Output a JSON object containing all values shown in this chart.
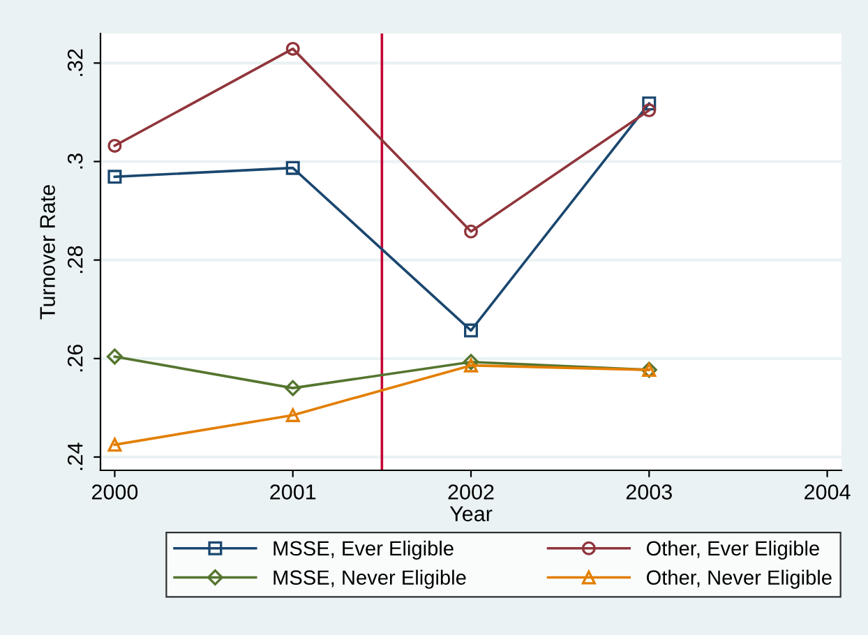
{
  "chart_data": {
    "type": "line",
    "xlabel": "Year",
    "ylabel": "Turnover Rate",
    "x": [
      2000,
      2001,
      2002,
      2003
    ],
    "series": [
      {
        "name": "MSSE, Ever Eligible",
        "color": "#1a476f",
        "values": [
          0.2969,
          0.2987,
          0.2657,
          0.3118
        ],
        "marker": "square"
      },
      {
        "name": "Other, Ever Eligible",
        "color": "#90353b",
        "values": [
          0.3032,
          0.3229,
          0.2858,
          0.3104
        ],
        "marker": "circle"
      },
      {
        "name": "MSSE, Never Eligible",
        "color": "#55752f",
        "values": [
          0.2604,
          0.254,
          0.2593,
          0.2577
        ],
        "marker": "diamond"
      },
      {
        "name": "Other, Never Eligible",
        "color": "#e37e00",
        "values": [
          0.2425,
          0.2485,
          0.2586,
          0.2577
        ],
        "marker": "triangle"
      }
    ],
    "xlim": [
      1999.92,
      2004.08
    ],
    "xticks": [
      2000,
      2001,
      2002,
      2003,
      2004
    ],
    "ylim": [
      0.2373,
      0.326
    ],
    "yticks": [
      {
        "value": 0.24,
        "label": ".24"
      },
      {
        "value": 0.26,
        "label": ".26"
      },
      {
        "value": 0.28,
        "label": ".28"
      },
      {
        "value": 0.3,
        "label": ".3"
      },
      {
        "value": 0.32,
        "label": ".32"
      }
    ],
    "ref_lines": [
      {
        "axis": "x",
        "value": 2001.5,
        "color": "#c10534"
      }
    ],
    "grid": "y",
    "legend": "bottom",
    "line_style": "solid"
  }
}
